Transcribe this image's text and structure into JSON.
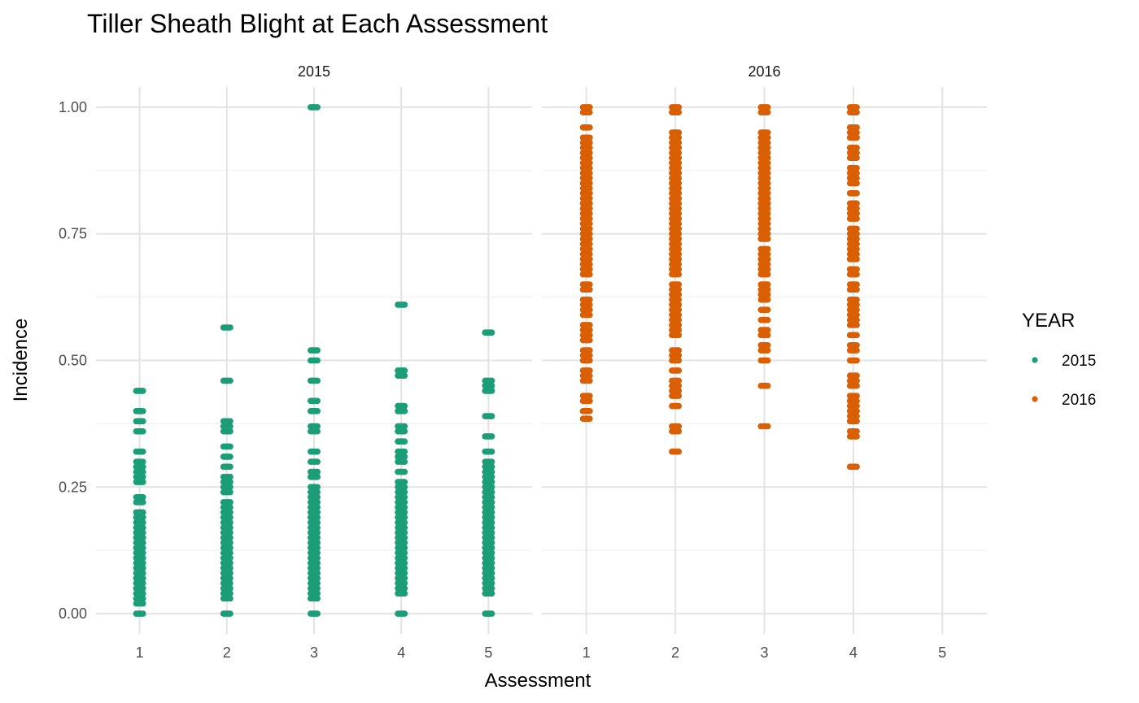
{
  "chart_data": {
    "type": "scatter",
    "title": "Tiller Sheath Blight at Each Assessment",
    "xlabel": "Assessment",
    "ylabel": "Incidence",
    "x_ticks": [
      "1",
      "2",
      "3",
      "4",
      "5"
    ],
    "y_ticks": [
      "0.00",
      "0.25",
      "0.50",
      "0.75",
      "1.00"
    ],
    "xlim": [
      0.5,
      5.5
    ],
    "ylim": [
      -0.04,
      1.04
    ],
    "grid": true,
    "legend": {
      "title": "YEAR",
      "placement": "right",
      "entries": [
        {
          "label": "2015",
          "color": "#1B9E77"
        },
        {
          "label": "2016",
          "color": "#D95F02"
        }
      ]
    },
    "facets": [
      {
        "label": "2015",
        "color": "#1B9E77",
        "series": [
          {
            "x": 1,
            "y": [
              0.0,
              0.02,
              0.03,
              0.04,
              0.05,
              0.06,
              0.07,
              0.08,
              0.09,
              0.1,
              0.11,
              0.12,
              0.13,
              0.14,
              0.15,
              0.16,
              0.17,
              0.18,
              0.19,
              0.2,
              0.22,
              0.23,
              0.26,
              0.27,
              0.28,
              0.29,
              0.3,
              0.32,
              0.36,
              0.38,
              0.4,
              0.44
            ]
          },
          {
            "x": 2,
            "y": [
              0.0,
              0.03,
              0.04,
              0.05,
              0.06,
              0.07,
              0.08,
              0.09,
              0.1,
              0.11,
              0.12,
              0.13,
              0.14,
              0.15,
              0.16,
              0.17,
              0.18,
              0.19,
              0.2,
              0.21,
              0.22,
              0.24,
              0.25,
              0.26,
              0.27,
              0.29,
              0.31,
              0.33,
              0.36,
              0.37,
              0.38,
              0.46,
              0.565
            ]
          },
          {
            "x": 3,
            "y": [
              0.0,
              0.03,
              0.04,
              0.05,
              0.06,
              0.07,
              0.08,
              0.09,
              0.1,
              0.11,
              0.12,
              0.13,
              0.14,
              0.15,
              0.16,
              0.17,
              0.18,
              0.19,
              0.2,
              0.21,
              0.22,
              0.23,
              0.24,
              0.25,
              0.27,
              0.28,
              0.3,
              0.32,
              0.36,
              0.37,
              0.4,
              0.42,
              0.46,
              0.5,
              0.52,
              1.0
            ]
          },
          {
            "x": 4,
            "y": [
              0.0,
              0.04,
              0.05,
              0.06,
              0.07,
              0.08,
              0.09,
              0.1,
              0.11,
              0.12,
              0.13,
              0.14,
              0.15,
              0.16,
              0.17,
              0.18,
              0.19,
              0.2,
              0.21,
              0.22,
              0.23,
              0.24,
              0.25,
              0.26,
              0.28,
              0.3,
              0.31,
              0.32,
              0.34,
              0.36,
              0.37,
              0.4,
              0.41,
              0.47,
              0.48,
              0.61
            ]
          },
          {
            "x": 5,
            "y": [
              0.0,
              0.04,
              0.05,
              0.06,
              0.07,
              0.08,
              0.09,
              0.1,
              0.11,
              0.12,
              0.13,
              0.14,
              0.15,
              0.16,
              0.17,
              0.18,
              0.19,
              0.2,
              0.21,
              0.22,
              0.23,
              0.24,
              0.25,
              0.26,
              0.27,
              0.28,
              0.29,
              0.3,
              0.32,
              0.35,
              0.39,
              0.44,
              0.45,
              0.46,
              0.555
            ]
          }
        ]
      },
      {
        "label": "2016",
        "color": "#D95F02",
        "series": [
          {
            "x": 1,
            "y": [
              0.385,
              0.4,
              0.42,
              0.43,
              0.46,
              0.47,
              0.48,
              0.5,
              0.51,
              0.52,
              0.54,
              0.55,
              0.56,
              0.57,
              0.59,
              0.6,
              0.61,
              0.62,
              0.64,
              0.65,
              0.67,
              0.68,
              0.69,
              0.7,
              0.71,
              0.72,
              0.73,
              0.74,
              0.75,
              0.76,
              0.77,
              0.78,
              0.79,
              0.8,
              0.81,
              0.82,
              0.83,
              0.84,
              0.85,
              0.86,
              0.87,
              0.88,
              0.89,
              0.9,
              0.91,
              0.92,
              0.93,
              0.94,
              0.96,
              0.99,
              1.0
            ]
          },
          {
            "x": 2,
            "y": [
              0.32,
              0.36,
              0.37,
              0.41,
              0.43,
              0.44,
              0.45,
              0.46,
              0.48,
              0.5,
              0.51,
              0.52,
              0.55,
              0.56,
              0.57,
              0.58,
              0.59,
              0.6,
              0.61,
              0.62,
              0.63,
              0.64,
              0.65,
              0.67,
              0.68,
              0.69,
              0.7,
              0.71,
              0.72,
              0.73,
              0.74,
              0.75,
              0.76,
              0.77,
              0.78,
              0.79,
              0.8,
              0.81,
              0.82,
              0.83,
              0.84,
              0.85,
              0.86,
              0.87,
              0.88,
              0.89,
              0.9,
              0.91,
              0.92,
              0.93,
              0.94,
              0.95,
              0.99,
              1.0
            ]
          },
          {
            "x": 3,
            "y": [
              0.37,
              0.45,
              0.5,
              0.52,
              0.53,
              0.55,
              0.56,
              0.58,
              0.6,
              0.62,
              0.63,
              0.64,
              0.65,
              0.67,
              0.68,
              0.69,
              0.7,
              0.71,
              0.72,
              0.74,
              0.75,
              0.76,
              0.77,
              0.78,
              0.79,
              0.8,
              0.81,
              0.82,
              0.83,
              0.84,
              0.85,
              0.86,
              0.87,
              0.88,
              0.89,
              0.9,
              0.91,
              0.92,
              0.93,
              0.94,
              0.95,
              0.99,
              1.0
            ]
          },
          {
            "x": 4,
            "y": [
              0.29,
              0.35,
              0.36,
              0.38,
              0.39,
              0.4,
              0.41,
              0.42,
              0.43,
              0.45,
              0.46,
              0.47,
              0.5,
              0.52,
              0.53,
              0.55,
              0.57,
              0.58,
              0.59,
              0.6,
              0.61,
              0.62,
              0.64,
              0.65,
              0.67,
              0.68,
              0.7,
              0.71,
              0.72,
              0.73,
              0.74,
              0.75,
              0.76,
              0.78,
              0.79,
              0.8,
              0.81,
              0.83,
              0.85,
              0.86,
              0.87,
              0.88,
              0.9,
              0.91,
              0.92,
              0.94,
              0.95,
              0.96,
              0.99,
              1.0
            ]
          }
        ]
      }
    ]
  }
}
